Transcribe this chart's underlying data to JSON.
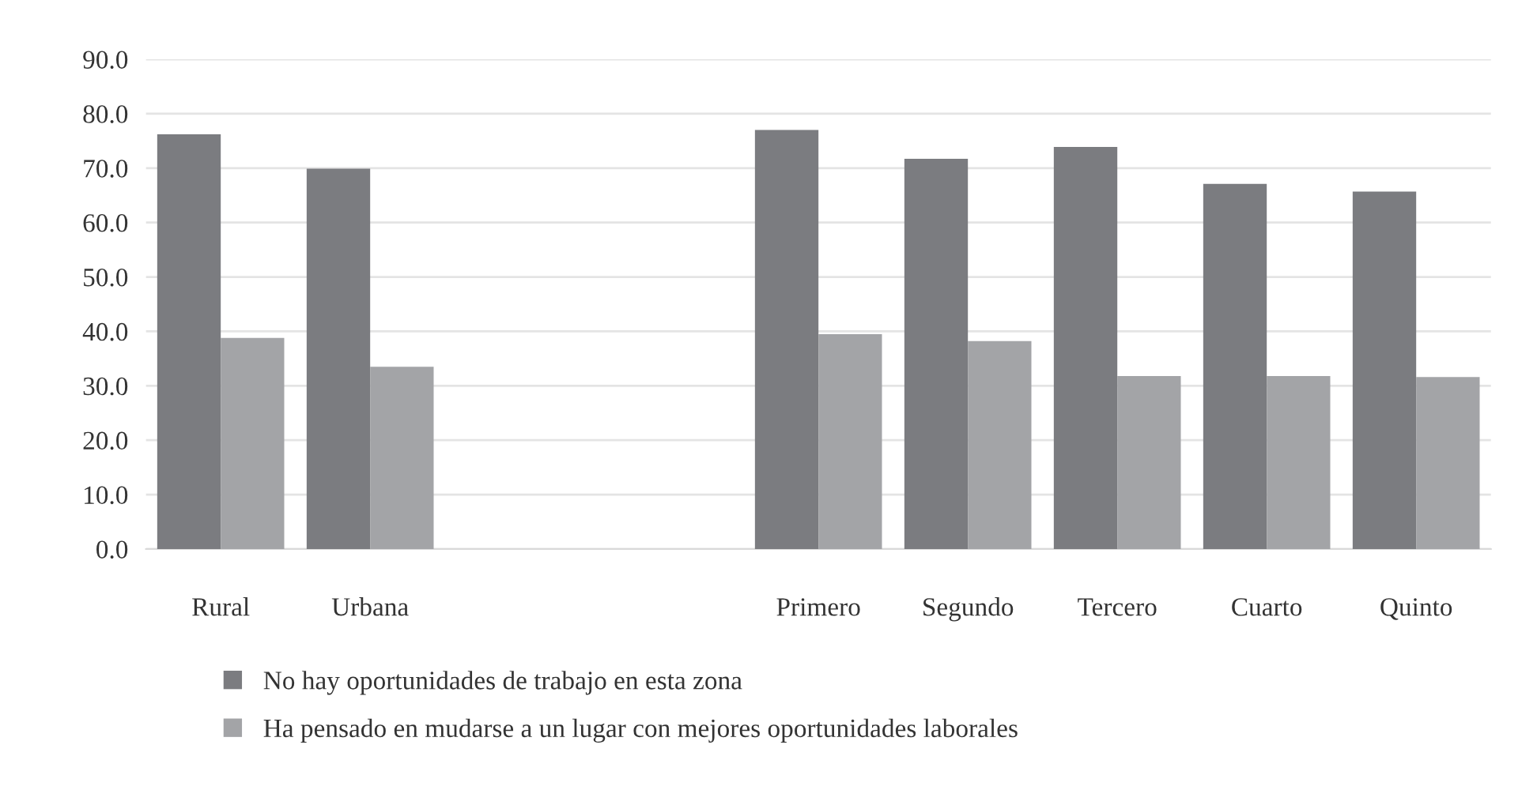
{
  "chart_data": {
    "type": "bar",
    "categories": [
      "Rural",
      "Urbana",
      null,
      null,
      "Primero",
      "Segundo",
      "Tercero",
      "Cuarto",
      "Quinto"
    ],
    "series": [
      {
        "name": "No hay oportunidades de trabajo en esta zona",
        "color": "#7b7c80",
        "values": [
          76.2,
          69.9,
          null,
          null,
          77.0,
          71.7,
          73.9,
          67.1,
          65.7
        ]
      },
      {
        "name": "Ha pensado en mudarse a un lugar con mejores oportunidades laborales",
        "color": "#a3a4a7",
        "values": [
          38.8,
          33.5,
          null,
          null,
          39.5,
          38.2,
          31.8,
          31.8,
          31.6
        ]
      }
    ],
    "ylim": [
      0,
      90
    ],
    "yticks": [
      {
        "value": 0,
        "label": "0.0"
      },
      {
        "value": 10,
        "label": "10.0"
      },
      {
        "value": 20,
        "label": "20.0"
      },
      {
        "value": 30,
        "label": "30.0"
      },
      {
        "value": 40,
        "label": "40.0"
      },
      {
        "value": 50,
        "label": "50.0"
      },
      {
        "value": 60,
        "label": "60.0"
      },
      {
        "value": 70,
        "label": "70.0"
      },
      {
        "value": 80,
        "label": "80.0"
      },
      {
        "value": 90,
        "label": "90.0"
      }
    ],
    "grid": "y",
    "legend": "bottom"
  }
}
